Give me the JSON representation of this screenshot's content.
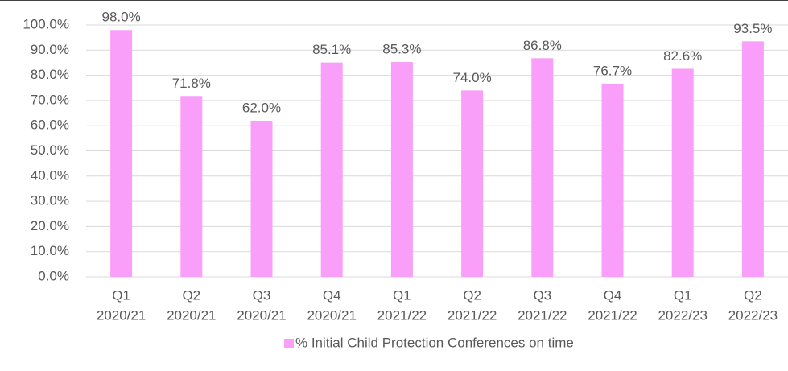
{
  "chart_data": {
    "type": "bar",
    "categories": [
      [
        "Q1",
        "2020/21"
      ],
      [
        "Q2",
        "2020/21"
      ],
      [
        "Q3",
        "2020/21"
      ],
      [
        "Q4",
        "2020/21"
      ],
      [
        "Q1",
        "2021/22"
      ],
      [
        "Q2",
        "2021/22"
      ],
      [
        "Q3",
        "2021/22"
      ],
      [
        "Q4",
        "2021/22"
      ],
      [
        "Q1",
        "2022/23"
      ],
      [
        "Q2",
        "2022/23"
      ]
    ],
    "series": [
      {
        "name": "% Initial Child Protection Conferences on time",
        "color": "#f99ff9",
        "values": [
          98.0,
          71.8,
          62.0,
          85.1,
          85.3,
          74.0,
          86.8,
          76.7,
          82.6,
          93.5
        ],
        "value_labels": [
          "98.0%",
          "71.8%",
          "62.0%",
          "85.1%",
          "85.3%",
          "74.0%",
          "86.8%",
          "76.7%",
          "82.6%",
          "93.5%"
        ]
      }
    ],
    "ylim": [
      0,
      100
    ],
    "yticks": [
      {
        "value": 0,
        "label": "0.0%"
      },
      {
        "value": 10,
        "label": "10.0%"
      },
      {
        "value": 20,
        "label": "20.0%"
      },
      {
        "value": 30,
        "label": "30.0%"
      },
      {
        "value": 40,
        "label": "40.0%"
      },
      {
        "value": 50,
        "label": "50.0%"
      },
      {
        "value": 60,
        "label": "60.0%"
      },
      {
        "value": 70,
        "label": "70.0%"
      },
      {
        "value": 80,
        "label": "80.0%"
      },
      {
        "value": 90,
        "label": "90.0%"
      },
      {
        "value": 100,
        "label": "100.0%"
      }
    ],
    "grid": true,
    "legend": "bottom"
  }
}
